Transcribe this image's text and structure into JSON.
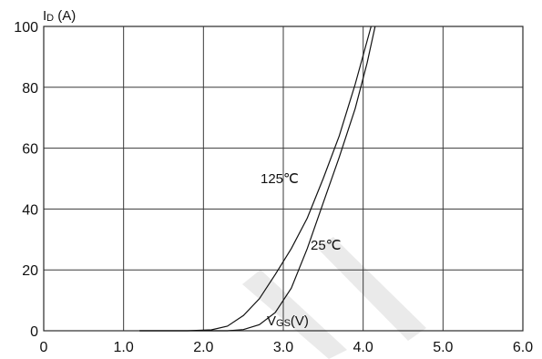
{
  "chart_data": {
    "type": "line",
    "ylabel_main": "I",
    "ylabel_sub": "D",
    "ylabel_unit": " (A)",
    "xlabel_main": "V",
    "xlabel_sub": "GS",
    "xlabel_unit": "(V)",
    "xlim": [
      0,
      6
    ],
    "ylim": [
      0,
      100
    ],
    "xticks": [
      "0",
      "1.0",
      "2.0",
      "3.0",
      "4.0",
      "5.0",
      "6.0"
    ],
    "yticks": [
      "0",
      "20",
      "40",
      "60",
      "80",
      "100"
    ],
    "grid": true,
    "series": [
      {
        "name": "125℃",
        "x": [
          1.2,
          1.8,
          2.1,
          2.3,
          2.5,
          2.7,
          2.9,
          3.1,
          3.3,
          3.5,
          3.7,
          3.9,
          4.1
        ],
        "y": [
          0,
          0,
          0.3,
          1.5,
          5,
          10.5,
          18.5,
          27,
          37,
          50,
          64,
          81,
          100
        ]
      },
      {
        "name": "25℃",
        "x": [
          1.2,
          2.3,
          2.5,
          2.7,
          2.9,
          3.1,
          3.3,
          3.5,
          3.7,
          3.9,
          4.05,
          4.15
        ],
        "y": [
          0,
          0,
          0.4,
          2,
          6,
          14,
          27,
          42,
          57,
          73,
          88,
          100
        ]
      }
    ]
  }
}
